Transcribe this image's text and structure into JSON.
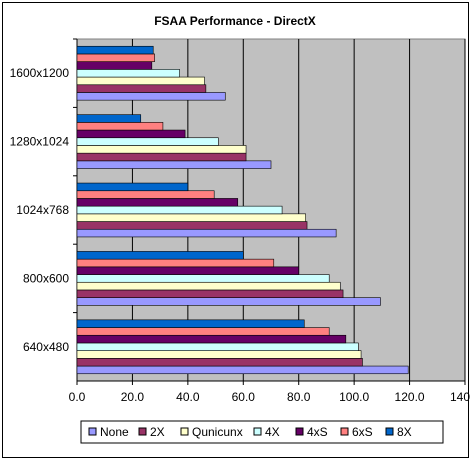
{
  "chart_data": {
    "type": "bar",
    "orientation": "horizontal",
    "title": "FSAA Performance - DirectX",
    "xlabel": "",
    "ylabel": "",
    "xlim": [
      0,
      140
    ],
    "x_ticks": [
      "0.0",
      "20.0",
      "40.0",
      "60.0",
      "80.0",
      "100.0",
      "120.0",
      "140.0"
    ],
    "grid": true,
    "legend_position": "bottom",
    "plot_background": "#c0c0c0",
    "categories": [
      "640x480",
      "800x600",
      "1024x768",
      "1280x1024",
      "1600x1200"
    ],
    "series": [
      {
        "name": "None",
        "color": "#9999ff",
        "values": [
          119.5,
          109.5,
          93.5,
          70.0,
          53.5
        ]
      },
      {
        "name": "2X",
        "color": "#993366",
        "values": [
          103.0,
          96.0,
          83.0,
          61.0,
          46.5
        ]
      },
      {
        "name": "Qunicunx",
        "color": "#ffffcc",
        "values": [
          102.5,
          95.0,
          82.5,
          61.0,
          46.0
        ]
      },
      {
        "name": "4X",
        "color": "#ccffff",
        "values": [
          101.5,
          91.0,
          74.0,
          51.0,
          37.0
        ]
      },
      {
        "name": "4xS",
        "color": "#660066",
        "values": [
          97.0,
          80.0,
          58.0,
          39.0,
          27.0
        ]
      },
      {
        "name": "6xS",
        "color": "#ff8080",
        "values": [
          91.0,
          71.0,
          49.5,
          31.0,
          28.0
        ]
      },
      {
        "name": "8X",
        "color": "#0066cc",
        "values": [
          82.0,
          60.0,
          40.0,
          23.0,
          27.5
        ]
      }
    ]
  }
}
